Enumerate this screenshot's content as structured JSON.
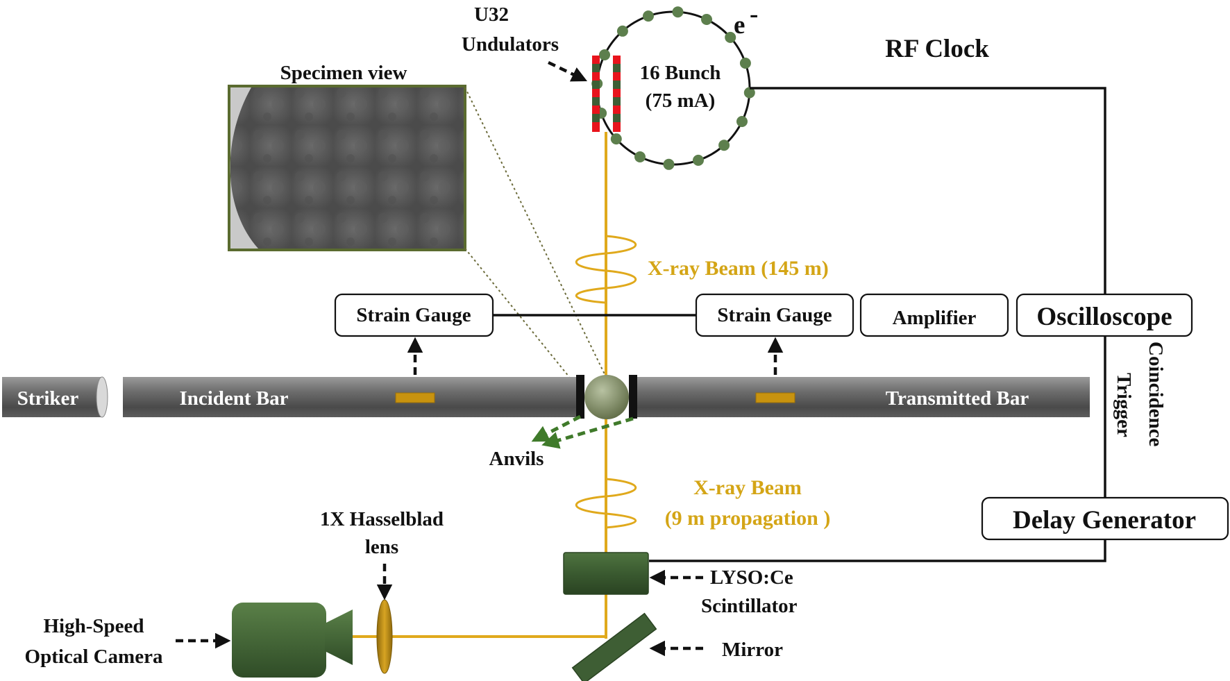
{
  "labels": {
    "undulators_line1": "U32",
    "undulators_line2": "Undulators",
    "electron": "e",
    "electron_sup": "-",
    "bunch_line1": "16 Bunch",
    "bunch_line2": "(75 mA)",
    "rf_clock": "RF Clock",
    "specimen_view": "Specimen view",
    "xray_beam_top": "X-ray Beam (145 m)",
    "strain_gauge_left": "Strain Gauge",
    "strain_gauge_right": "Strain Gauge",
    "amplifier": "Amplifier",
    "oscilloscope": "Oscilloscope",
    "striker": "Striker",
    "incident_bar": "Incident Bar",
    "transmitted_bar": "Transmitted  Bar",
    "coincidence": "Coincidence",
    "trigger": "Trigger",
    "anvils": "Anvils",
    "xray_beam_bottom_line1": "X-ray Beam",
    "xray_beam_bottom_line2": "(9 m propagation )",
    "lens_line1": "1X Hasselblad",
    "lens_line2": "lens",
    "delay_generator": "Delay Generator",
    "scintillator_line1": "LYSO:Ce",
    "scintillator_line2": "Scintillator",
    "camera_line1": "High-Speed",
    "camera_line2": "Optical Camera",
    "mirror": "Mirror"
  },
  "colors": {
    "beam": "#e0a91c",
    "dark_green": "#3e5e34",
    "green_dots": "#5d7f4d",
    "red_magnet": "#e8141c",
    "bar_gray": "#6a6a6a",
    "frame_green": "#5a6b2f"
  },
  "bunch_count": 16
}
